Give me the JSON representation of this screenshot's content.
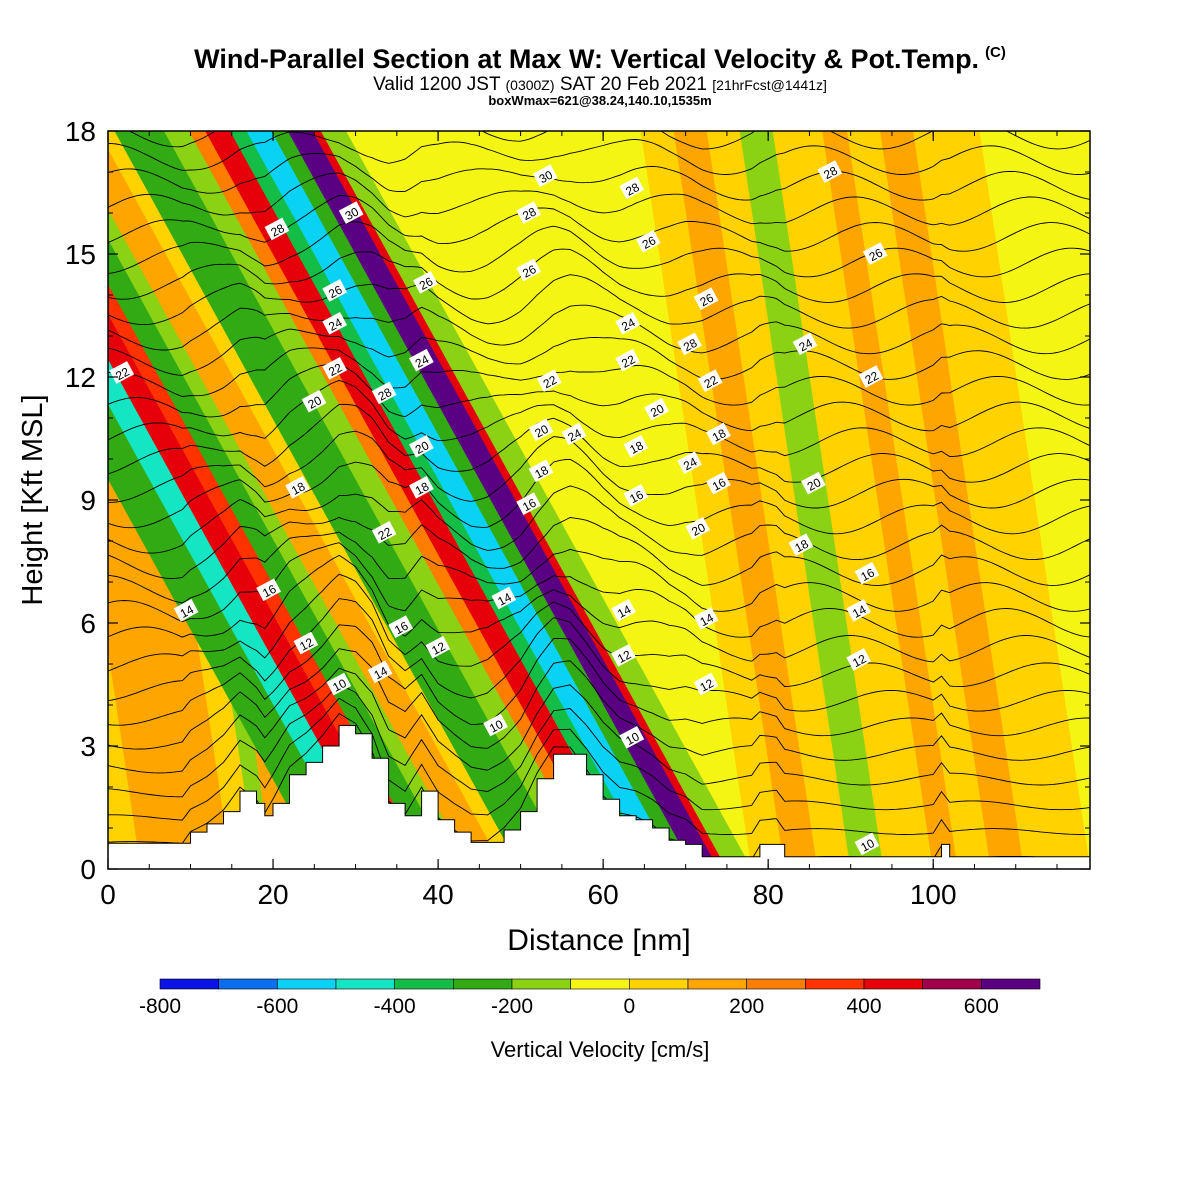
{
  "chart_data": {
    "type": "heatmap",
    "title": "Wind-Parallel Section at Max W: Vertical Velocity & Pot.Temp.",
    "copyright": "(C)",
    "subtitle": {
      "valid": "Valid 1200 JST",
      "utc": "(0300Z)",
      "date": "SAT 20 Feb 2021",
      "fcst": "[21hrFcst@1441z]"
    },
    "box_info": "boxWmax=621@38.24,140.10,1535m",
    "xlabel": "Distance [nm]",
    "ylabel": "Height [Kft MSL]",
    "xlim": [
      0,
      119
    ],
    "ylim": [
      0,
      18
    ],
    "xticks": [
      0,
      20,
      40,
      60,
      80,
      100
    ],
    "yticks": [
      0,
      3,
      6,
      9,
      12,
      15,
      18
    ],
    "colorbar": {
      "label": "Vertical Velocity [cm/s]",
      "levels": [
        -800,
        -700,
        -600,
        -500,
        -400,
        -300,
        -200,
        -100,
        0,
        100,
        200,
        300,
        400,
        500,
        600,
        700
      ],
      "tick_labels": [
        "-800",
        "-600",
        "-400",
        "-200",
        "0",
        "200",
        "400",
        "600"
      ],
      "colors": [
        "#0a14e6",
        "#0a6ef0",
        "#0ad2f5",
        "#14e6c3",
        "#14be46",
        "#32aa14",
        "#8cd214",
        "#f5f514",
        "#ffd200",
        "#ffa500",
        "#ff7d00",
        "#ff3200",
        "#e6000a",
        "#a0004b",
        "#5a0082"
      ]
    },
    "terrain": [
      [
        0,
        0.63
      ],
      [
        3,
        0.63
      ],
      [
        6,
        0.63
      ],
      [
        9,
        0.63
      ],
      [
        10,
        0.9
      ],
      [
        12,
        1.1
      ],
      [
        14,
        1.4
      ],
      [
        16,
        1.9
      ],
      [
        18,
        1.6
      ],
      [
        19,
        1.3
      ],
      [
        20,
        1.6
      ],
      [
        22,
        2.3
      ],
      [
        24,
        2.6
      ],
      [
        26,
        3.0
      ],
      [
        28,
        3.5
      ],
      [
        30,
        3.3
      ],
      [
        32,
        2.7
      ],
      [
        34,
        1.6
      ],
      [
        36,
        1.3
      ],
      [
        38,
        1.9
      ],
      [
        40,
        1.2
      ],
      [
        42,
        0.9
      ],
      [
        44,
        0.65
      ],
      [
        46,
        0.65
      ],
      [
        48,
        0.95
      ],
      [
        50,
        1.4
      ],
      [
        52,
        2.2
      ],
      [
        54,
        2.8
      ],
      [
        56,
        2.8
      ],
      [
        58,
        2.3
      ],
      [
        60,
        1.7
      ],
      [
        62,
        1.3
      ],
      [
        64,
        1.2
      ],
      [
        66,
        1.0
      ],
      [
        68,
        0.7
      ],
      [
        70,
        0.6
      ],
      [
        72,
        0.3
      ],
      [
        76,
        0.3
      ],
      [
        78,
        0.3
      ],
      [
        79,
        0.6
      ],
      [
        81,
        0.6
      ],
      [
        82,
        0.3
      ],
      [
        90,
        0.3
      ],
      [
        96,
        0.3
      ],
      [
        100,
        0.3
      ],
      [
        101,
        0.6
      ],
      [
        102,
        0.3
      ],
      [
        110,
        0.3
      ],
      [
        119,
        0.3
      ]
    ],
    "w_bands": [
      {
        "x0": 0,
        "x1": 4,
        "w": 0
      },
      {
        "x0": 4,
        "x1": 15,
        "w": 150
      },
      {
        "x0": 15,
        "x1": 18,
        "w": 50
      },
      {
        "x0": 18,
        "x1": 20,
        "w": -150
      },
      {
        "x0": 20,
        "x1": 23,
        "w": 150
      },
      {
        "x0": 23,
        "x1": 26,
        "w": 250
      },
      {
        "x0": 26,
        "x1": 31,
        "w": -250
      },
      {
        "x0": 31,
        "x1": 34,
        "w": -450
      },
      {
        "x0": 34,
        "x1": 37,
        "w": 450
      },
      {
        "x0": 37,
        "x1": 39,
        "w": 350
      },
      {
        "x0": 39,
        "x1": 42,
        "w": -250
      },
      {
        "x0": 42,
        "x1": 44,
        "w": -150
      },
      {
        "x0": 44,
        "x1": 48,
        "w": 150
      },
      {
        "x0": 48,
        "x1": 50,
        "w": 50
      },
      {
        "x0": 50,
        "x1": 56,
        "w": -250
      },
      {
        "x0": 56,
        "x1": 59,
        "w": -150
      },
      {
        "x0": 59,
        "x1": 61,
        "w": 250
      },
      {
        "x0": 61,
        "x1": 64,
        "w": 450
      },
      {
        "x0": 64,
        "x1": 66,
        "w": -350
      },
      {
        "x0": 66,
        "x1": 69,
        "w": -550
      },
      {
        "x0": 69,
        "x1": 71,
        "w": -250
      },
      {
        "x0": 71,
        "x1": 74,
        "w": 650
      },
      {
        "x0": 74,
        "x1": 75,
        "w": 450
      },
      {
        "x0": 75,
        "x1": 78,
        "w": -150
      },
      {
        "x0": 78,
        "x1": 82,
        "w": 50
      },
      {
        "x0": 82,
        "x1": 86,
        "w": 150
      },
      {
        "x0": 86,
        "x1": 90,
        "w": 50
      },
      {
        "x0": 90,
        "x1": 94,
        "w": -150
      },
      {
        "x0": 94,
        "x1": 100,
        "w": 50
      },
      {
        "x0": 100,
        "x1": 103,
        "w": 150
      },
      {
        "x0": 103,
        "x1": 107,
        "w": 50
      },
      {
        "x0": 107,
        "x1": 111,
        "w": 150
      },
      {
        "x0": 111,
        "x1": 119,
        "w": 0
      }
    ],
    "contour_labels": [
      {
        "text": "28",
        "x": 20.5,
        "y": 15.6
      },
      {
        "text": "30",
        "x": 29.5,
        "y": 16.0
      },
      {
        "text": "26",
        "x": 27.5,
        "y": 14.1
      },
      {
        "text": "24",
        "x": 27.5,
        "y": 13.3
      },
      {
        "text": "22",
        "x": 27.5,
        "y": 12.2
      },
      {
        "text": "20",
        "x": 25.0,
        "y": 11.4
      },
      {
        "text": "28",
        "x": 33.5,
        "y": 11.6
      },
      {
        "text": "22",
        "x": 1.7,
        "y": 12.1
      },
      {
        "text": "18",
        "x": 23.0,
        "y": 9.3
      },
      {
        "text": "22",
        "x": 33.5,
        "y": 8.2
      },
      {
        "text": "16",
        "x": 19.5,
        "y": 6.8
      },
      {
        "text": "14",
        "x": 9.5,
        "y": 6.3
      },
      {
        "text": "12",
        "x": 24.0,
        "y": 5.5
      },
      {
        "text": "10",
        "x": 28.0,
        "y": 4.5
      },
      {
        "text": "14",
        "x": 33.0,
        "y": 4.8
      },
      {
        "text": "16",
        "x": 35.5,
        "y": 5.9
      },
      {
        "text": "26",
        "x": 38.5,
        "y": 14.3
      },
      {
        "text": "24",
        "x": 38.0,
        "y": 12.4
      },
      {
        "text": "20",
        "x": 38.0,
        "y": 10.3
      },
      {
        "text": "18",
        "x": 38.0,
        "y": 9.3
      },
      {
        "text": "12",
        "x": 40.0,
        "y": 5.4
      },
      {
        "text": "30",
        "x": 53.0,
        "y": 16.9
      },
      {
        "text": "28",
        "x": 51.0,
        "y": 16.0
      },
      {
        "text": "26",
        "x": 51.0,
        "y": 14.6
      },
      {
        "text": "22",
        "x": 53.5,
        "y": 11.9
      },
      {
        "text": "20",
        "x": 52.5,
        "y": 10.7
      },
      {
        "text": "24",
        "x": 56.5,
        "y": 10.6
      },
      {
        "text": "18",
        "x": 52.5,
        "y": 9.7
      },
      {
        "text": "16",
        "x": 51.0,
        "y": 8.9
      },
      {
        "text": "14",
        "x": 48.0,
        "y": 6.6
      },
      {
        "text": "10",
        "x": 47.0,
        "y": 3.5
      },
      {
        "text": "28",
        "x": 63.5,
        "y": 16.6
      },
      {
        "text": "26",
        "x": 65.5,
        "y": 15.3
      },
      {
        "text": "24",
        "x": 63.0,
        "y": 13.3
      },
      {
        "text": "22",
        "x": 63.0,
        "y": 12.4
      },
      {
        "text": "20",
        "x": 66.5,
        "y": 11.2
      },
      {
        "text": "18",
        "x": 64.0,
        "y": 10.3
      },
      {
        "text": "16",
        "x": 64.0,
        "y": 9.1
      },
      {
        "text": "14",
        "x": 62.5,
        "y": 6.3
      },
      {
        "text": "12",
        "x": 62.5,
        "y": 5.2
      },
      {
        "text": "10",
        "x": 63.5,
        "y": 3.2
      },
      {
        "text": "28",
        "x": 70.5,
        "y": 12.8
      },
      {
        "text": "26",
        "x": 72.5,
        "y": 13.9
      },
      {
        "text": "24",
        "x": 70.5,
        "y": 9.9
      },
      {
        "text": "22",
        "x": 73.0,
        "y": 11.9
      },
      {
        "text": "18",
        "x": 74.0,
        "y": 10.6
      },
      {
        "text": "16",
        "x": 74.0,
        "y": 9.4
      },
      {
        "text": "20",
        "x": 71.5,
        "y": 8.3
      },
      {
        "text": "14",
        "x": 72.5,
        "y": 6.1
      },
      {
        "text": "12",
        "x": 72.5,
        "y": 4.5
      },
      {
        "text": "28",
        "x": 87.5,
        "y": 17.0
      },
      {
        "text": "26",
        "x": 93.0,
        "y": 15.0
      },
      {
        "text": "24",
        "x": 84.5,
        "y": 12.8
      },
      {
        "text": "22",
        "x": 92.5,
        "y": 12.0
      },
      {
        "text": "20",
        "x": 85.5,
        "y": 9.4
      },
      {
        "text": "18",
        "x": 84.0,
        "y": 7.9
      },
      {
        "text": "16",
        "x": 92.0,
        "y": 7.2
      },
      {
        "text": "14",
        "x": 91.0,
        "y": 6.3
      },
      {
        "text": "12",
        "x": 91.0,
        "y": 5.1
      },
      {
        "text": "10",
        "x": 92.0,
        "y": 0.6
      }
    ],
    "grid": false
  }
}
